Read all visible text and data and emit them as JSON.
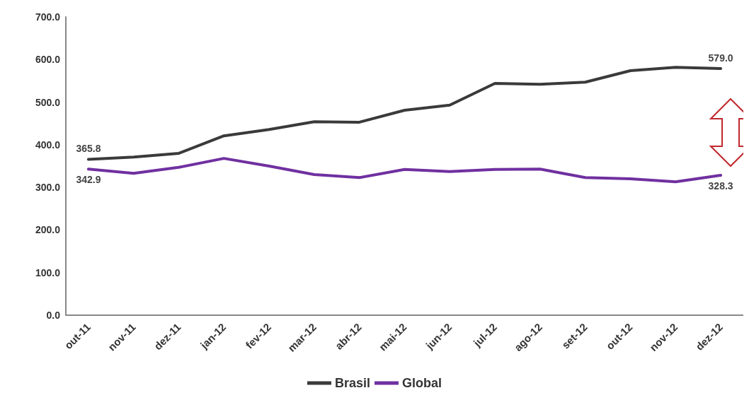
{
  "chart_data": {
    "type": "line",
    "categories": [
      "out-11",
      "nov-11",
      "dez-11",
      "jan-12",
      "fev-12",
      "mar-12",
      "abr-12",
      "mai-12",
      "jun-12",
      "jul-12",
      "ago-12",
      "set-12",
      "out-12",
      "nov-12",
      "dez-12"
    ],
    "series": [
      {
        "name": "Brasil",
        "color": "#3a3a3a",
        "values": [
          365.8,
          371,
          380,
          421,
          436,
          454,
          453,
          481,
          493,
          544,
          542,
          547,
          574,
          582,
          579.0
        ],
        "value_labels": [
          "365.8",
          null,
          null,
          null,
          null,
          null,
          null,
          null,
          null,
          null,
          null,
          null,
          null,
          null,
          "579.0"
        ]
      },
      {
        "name": "Global",
        "color": "#7030a0",
        "values": [
          342.9,
          333,
          347,
          368,
          350,
          330,
          323,
          342,
          337,
          342,
          343,
          323,
          320,
          313,
          328.3
        ],
        "value_labels": [
          "342.9",
          null,
          null,
          null,
          null,
          null,
          null,
          null,
          null,
          null,
          null,
          null,
          null,
          null,
          "328.3"
        ]
      }
    ],
    "ylim": [
      0,
      700
    ],
    "yticks": [
      {
        "value": 0,
        "label": "0.0"
      },
      {
        "value": 100,
        "label": "100.0"
      },
      {
        "value": 200,
        "label": "200.0"
      },
      {
        "value": 300,
        "label": "300.0"
      },
      {
        "value": 400,
        "label": "400.0"
      },
      {
        "value": 500,
        "label": "500.0"
      },
      {
        "value": 600,
        "label": "600.0"
      },
      {
        "value": 700,
        "label": "700.0"
      }
    ],
    "legend": "bottom",
    "marker": "none",
    "line_style": "solid"
  }
}
